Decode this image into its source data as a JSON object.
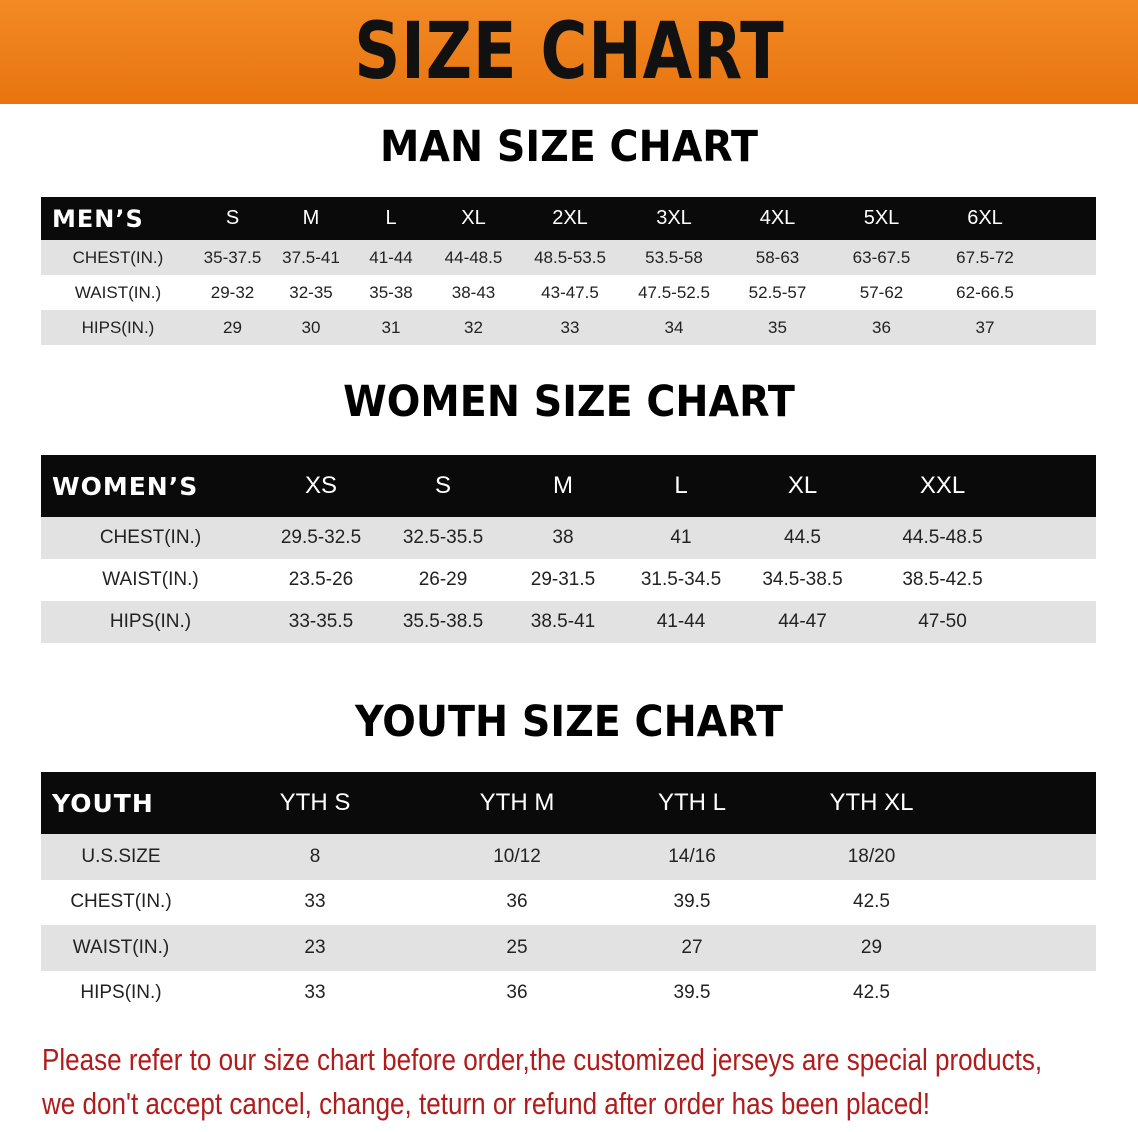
{
  "title": "SIZE CHART",
  "men": {
    "section_title": "MAN SIZE CHART",
    "header": [
      "MEN’S",
      "S",
      "M",
      "L",
      "XL",
      "2XL",
      "3XL",
      "4XL",
      "5XL",
      "6XL"
    ],
    "rows": [
      [
        "CHEST(IN.)",
        "35-37.5",
        "37.5-41",
        "41-44",
        "44-48.5",
        "48.5-53.5",
        "53.5-58",
        "58-63",
        "63-67.5",
        "67.5-72"
      ],
      [
        "WAIST(IN.)",
        "29-32",
        "32-35",
        "35-38",
        "38-43",
        "43-47.5",
        "47.5-52.5",
        "52.5-57",
        "57-62",
        "62-66.5"
      ],
      [
        "HIPS(IN.)",
        "29",
        "30",
        "31",
        "32",
        "33",
        "34",
        "35",
        "36",
        "37"
      ]
    ]
  },
  "women": {
    "section_title": "WOMEN SIZE CHART",
    "header": [
      "WOMEN’S",
      "XS",
      "S",
      "M",
      "L",
      "XL",
      "XXL"
    ],
    "rows": [
      [
        "CHEST(IN.)",
        "29.5-32.5",
        "32.5-35.5",
        "38",
        "41",
        "44.5",
        "44.5-48.5"
      ],
      [
        "WAIST(IN.)",
        "23.5-26",
        "26-29",
        "29-31.5",
        "31.5-34.5",
        "34.5-38.5",
        "38.5-42.5"
      ],
      [
        "HIPS(IN.)",
        "33-35.5",
        "35.5-38.5",
        "38.5-41",
        "41-44",
        "44-47",
        "47-50"
      ]
    ]
  },
  "youth": {
    "section_title": "YOUTH SIZE CHART",
    "header": [
      "YOUTH",
      "YTH S",
      "YTH M",
      "YTH L",
      "YTH XL"
    ],
    "rows": [
      [
        "U.S.SIZE",
        "8",
        "10/12",
        "14/16",
        "18/20"
      ],
      [
        "CHEST(IN.)",
        "33",
        "36",
        "39.5",
        "42.5"
      ],
      [
        "WAIST(IN.)",
        "23",
        "25",
        "27",
        "29"
      ],
      [
        "HIPS(IN.)",
        "33",
        "36",
        "39.5",
        "42.5"
      ]
    ]
  },
  "notice": [
    "Please refer to our size chart before order,the customized jerseys are special products,",
    "we don't accept cancel, change, teturn or refund after order has been placed!"
  ],
  "colors": {
    "banner": "#ef7f1a",
    "header_bg": "#0a0a0a",
    "row_gray": "#e2e2e2",
    "notice": "#b01c1c"
  }
}
